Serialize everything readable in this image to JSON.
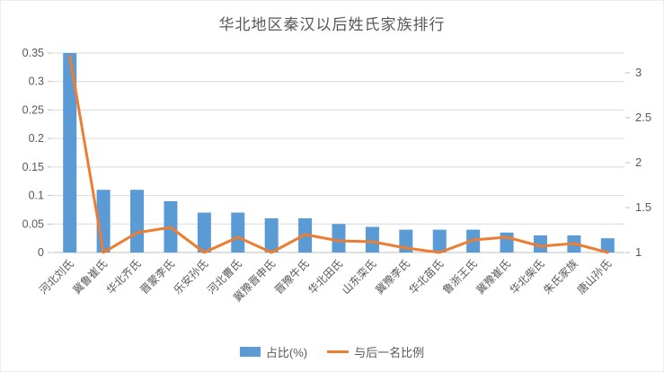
{
  "title": "华北地区秦汉以后姓氏家族排行",
  "colors": {
    "bar": "#5B9BD5",
    "line": "#ED7D31",
    "grid": "#D9D9D9",
    "axis": "#BFBFBF",
    "text": "#595959"
  },
  "legend": [
    {
      "label": "占比(%)",
      "type": "bar"
    },
    {
      "label": "与后一名比例",
      "type": "line"
    }
  ],
  "chart_data": {
    "type": "bar",
    "combo": "bar+line",
    "title": "华北地区秦汉以后姓氏家族排行",
    "categories": [
      "河北刘氏",
      "冀鲁崔氏",
      "华北齐氏",
      "晋蒙李氏",
      "乐安孙氏",
      "河北曹氏",
      "冀豫晋申氏",
      "晋豫牛氏",
      "华北田氏",
      "山东栾氏",
      "冀豫李氏",
      "华北苗氏",
      "鲁浙王氏",
      "冀豫崔氏",
      "华北柴氏",
      "朱氏家族",
      "唐山孙氏"
    ],
    "series": [
      {
        "name": "占比(%)",
        "type": "bar",
        "axis": "left",
        "values": [
          0.35,
          0.11,
          0.11,
          0.09,
          0.07,
          0.07,
          0.06,
          0.06,
          0.05,
          0.045,
          0.04,
          0.04,
          0.04,
          0.035,
          0.03,
          0.03,
          0.025
        ]
      },
      {
        "name": "与后一名比例",
        "type": "line",
        "axis": "right",
        "values": [
          3.18,
          1.0,
          1.22,
          1.28,
          1.0,
          1.17,
          1.0,
          1.2,
          1.13,
          1.12,
          1.05,
          1.0,
          1.14,
          1.17,
          1.07,
          1.1,
          1.0
        ]
      }
    ],
    "left_axis": {
      "min": 0,
      "max": 0.35,
      "ticks": [
        0,
        0.05,
        0.1,
        0.15,
        0.2,
        0.25,
        0.3,
        0.35
      ]
    },
    "right_axis": {
      "min": 1,
      "max": 3.22,
      "ticks": [
        1,
        1.5,
        2,
        2.5,
        3
      ]
    },
    "grid": true,
    "legend_position": "bottom",
    "xlabel": "",
    "ylabel": ""
  }
}
